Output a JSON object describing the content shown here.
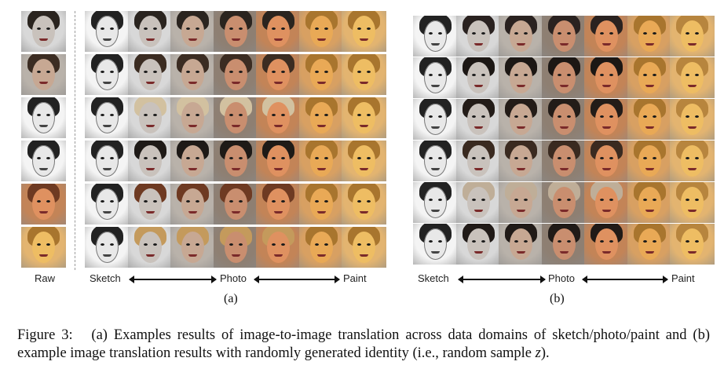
{
  "panel_a": {
    "raw_label": "Raw",
    "axis": {
      "left": "Sketch",
      "middle": "Photo",
      "right": "Paint"
    },
    "sublabel": "(a)",
    "rows": 6,
    "columns": 7
  },
  "panel_b": {
    "axis": {
      "left": "Sketch",
      "middle": "Photo",
      "right": "Paint"
    },
    "sublabel": "(b)",
    "rows": 6,
    "columns": 7
  },
  "caption": {
    "figure_label": "Figure 3:",
    "text_before_var": "(a) Examples results of image-to-image translation across data domains of sketch/photo/paint and (b) example image translation results with randomly generated identity (i.e., random sample ",
    "variable": "z",
    "text_after_var": ")."
  }
}
